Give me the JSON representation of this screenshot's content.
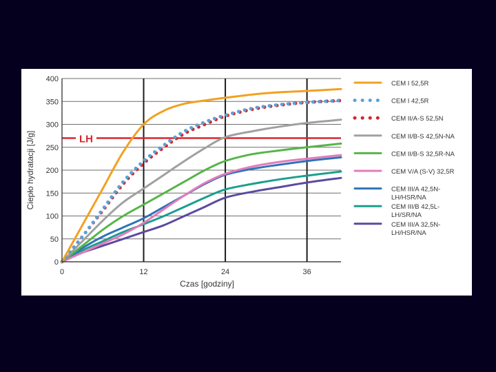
{
  "chart_data": {
    "type": "line",
    "xlabel": "Czas [godziny]",
    "ylabel": "Ciepło hydratacji [J/g]",
    "xlim": [
      0,
      41
    ],
    "ylim": [
      0,
      400
    ],
    "xticks": [
      0,
      12,
      24,
      36
    ],
    "yticks": [
      0,
      50,
      100,
      150,
      200,
      250,
      300,
      350,
      400
    ],
    "reference_line": {
      "label": "LH",
      "y": 270,
      "color": "#d7262e"
    },
    "series": [
      {
        "name": "CEM I 52,5R",
        "color": "#f2a020",
        "style": "solid",
        "x": [
          0,
          3,
          6,
          9,
          12,
          15,
          18,
          21,
          24,
          30,
          36,
          41
        ],
        "y": [
          0,
          80,
          160,
          240,
          300,
          330,
          345,
          352,
          358,
          368,
          373,
          377
        ]
      },
      {
        "name": "CEM I 42,5R",
        "color": "#5aa2d8",
        "style": "dotted",
        "x": [
          0,
          3,
          6,
          9,
          12,
          15,
          18,
          21,
          24,
          28,
          32,
          36,
          41
        ],
        "y": [
          0,
          55,
          115,
          175,
          220,
          255,
          285,
          305,
          320,
          335,
          343,
          348,
          352
        ]
      },
      {
        "name": "CEM II/A-S 52,5N",
        "color": "#d7262e",
        "style": "dotted",
        "x": [
          0,
          3,
          6,
          9,
          12,
          15,
          18,
          21,
          24,
          28,
          32,
          36,
          41
        ],
        "y": [
          0,
          55,
          112,
          170,
          215,
          250,
          280,
          300,
          318,
          333,
          342,
          348,
          352
        ]
      },
      {
        "name": "CEM II/B-S 42,5N-NA",
        "color": "#a0a0a0",
        "style": "solid",
        "x": [
          0,
          3,
          6,
          9,
          12,
          15,
          18,
          21,
          24,
          28,
          32,
          36,
          41
        ],
        "y": [
          0,
          45,
          90,
          130,
          160,
          190,
          220,
          248,
          272,
          285,
          295,
          303,
          310
        ]
      },
      {
        "name": "CEM II/B-S 32,5R-NA",
        "color": "#55b548",
        "style": "solid",
        "x": [
          0,
          3,
          6,
          9,
          12,
          15,
          18,
          21,
          24,
          28,
          32,
          36,
          41
        ],
        "y": [
          0,
          35,
          70,
          100,
          125,
          150,
          175,
          200,
          220,
          235,
          243,
          250,
          258
        ]
      },
      {
        "name": "CEM V/A (S-V) 32,5R",
        "color": "#e47bbb",
        "style": "solid",
        "x": [
          0,
          3,
          6,
          9,
          12,
          15,
          18,
          21,
          24,
          28,
          32,
          36,
          41
        ],
        "y": [
          0,
          20,
          40,
          60,
          85,
          115,
          145,
          172,
          192,
          208,
          218,
          225,
          233
        ]
      },
      {
        "name": "CEM III/A 42,5N-LH/HSR/NA",
        "color": "#2e74b8",
        "style": "solid",
        "x": [
          0,
          3,
          6,
          9,
          12,
          15,
          18,
          21,
          24,
          28,
          32,
          36,
          41
        ],
        "y": [
          0,
          30,
          55,
          75,
          95,
          120,
          145,
          170,
          190,
          203,
          212,
          220,
          228
        ]
      },
      {
        "name": "CEM III/B 42,5L-LH/SR/NA",
        "color": "#1a9e8e",
        "style": "solid",
        "x": [
          0,
          3,
          6,
          9,
          12,
          15,
          18,
          21,
          24,
          28,
          32,
          36,
          41
        ],
        "y": [
          0,
          25,
          45,
          65,
          82,
          100,
          120,
          140,
          158,
          170,
          180,
          188,
          197
        ]
      },
      {
        "name": "CEM III/A 32,5N-LH/HSR/NA",
        "color": "#5a4aa0",
        "style": "solid",
        "x": [
          0,
          3,
          6,
          9,
          12,
          15,
          18,
          21,
          24,
          28,
          32,
          36,
          41
        ],
        "y": [
          0,
          20,
          35,
          50,
          65,
          80,
          100,
          120,
          140,
          153,
          163,
          173,
          183
        ]
      }
    ],
    "legend_labels": [
      [
        "CEM I 52,5R"
      ],
      [
        "CEM I 42,5R"
      ],
      [
        "CEM II/A-S 52,5N"
      ],
      [
        "CEM II/B-S 42,5N-NA"
      ],
      [
        "CEM II/B-S 32,5R-NA"
      ],
      [
        "CEM V/A (S-V) 32,5R"
      ],
      [
        "CEM III/A 42,5N-",
        "LH/HSR/NA"
      ],
      [
        "CEM III/B 42,5L-",
        "LH/SR/NA"
      ],
      [
        "CEM III/A 32,5N-",
        "LH/HSR/NA"
      ]
    ],
    "legend_position": "right",
    "grid": true
  }
}
